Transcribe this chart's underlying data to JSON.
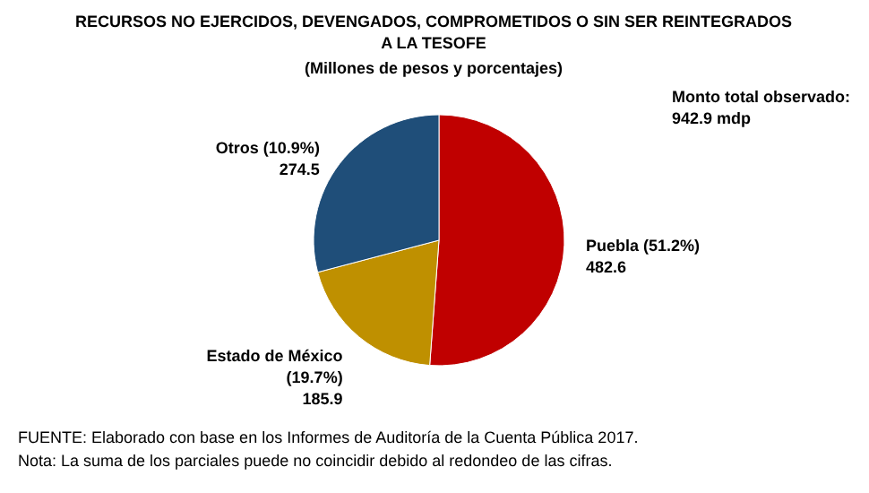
{
  "chart_data": {
    "type": "pie",
    "title": "RECURSOS NO EJERCIDOS, DEVENGADOS, COMPROMETIDOS O SIN SER REINTEGRADOS A LA TESOFE",
    "subtitle": "(Millones de pesos y porcentajes)",
    "categories": [
      "Puebla (51.2%)",
      "Estado de México (19.7%)",
      "Otros (10.9%)"
    ],
    "values": [
      482.6,
      185.9,
      274.5
    ],
    "colors": [
      "#c00000",
      "#bf9000",
      "#1f4e79"
    ],
    "data_labels": true,
    "annotations": [
      "Monto total observado: 942.9 mdp",
      "FUENTE: Elaborado con base en los Informes de Auditoría de la Cuenta Pública 2017.",
      "Nota: La suma de los parciales puede no coincidir debido al redondeo de las cifras."
    ]
  }
}
